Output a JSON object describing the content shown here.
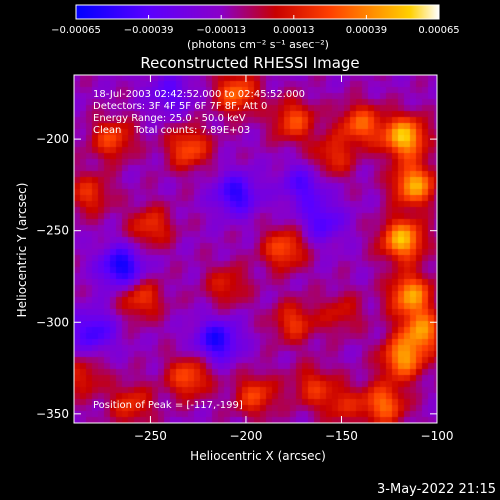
{
  "chart_data": {
    "type": "heatmap",
    "title": "Reconstructed RHESSI Image",
    "xlabel": "Heliocentric X (arcsec)",
    "ylabel": "Heliocentric Y (arcsec)",
    "xlim": [
      -290,
      -100
    ],
    "ylim": [
      -355,
      -165
    ],
    "x_ticks": [
      -250,
      -200,
      -150,
      -100
    ],
    "y_ticks": [
      -200,
      -250,
      -300,
      -350
    ],
    "x_tick_labels": [
      "−250",
      "−200",
      "−150",
      "−100"
    ],
    "y_tick_labels": [
      "−200",
      "−250",
      "−300",
      "−350"
    ],
    "colorbar": {
      "min": -0.00065,
      "max": 0.00065,
      "ticks": [
        -0.00065,
        -0.00039,
        -0.00013,
        0.00013,
        0.00039,
        0.00065
      ],
      "tick_labels": [
        "−0.00065",
        "−0.00039",
        "−0.00013",
        "0.00013",
        "0.00039",
        "0.00065"
      ],
      "unit_label": "(photons cm⁻² s⁻¹ asec⁻²)",
      "colors": [
        "#0000ff",
        "#5a00ff",
        "#8a00c8",
        "#c80000",
        "#ff4000",
        "#ff9000",
        "#ffd000",
        "#ffffff"
      ]
    },
    "annotations": [
      "18-Jul-2003 02:42:52.000 to 02:45:52.000",
      "Detectors: 3F 4F 5F 6F 7F 8F, Att 0",
      "Energy Range: 25.0 - 50.0 keV",
      "Clean    Total counts: 7.89E+03",
      "Position of Peak = [-117,-199]"
    ],
    "peak": {
      "x": -117,
      "y": -199
    },
    "hot_spots": [
      {
        "x": -117,
        "y": -199,
        "value": 0.00065
      },
      {
        "x": -112,
        "y": -225,
        "value": 0.00058
      },
      {
        "x": -118,
        "y": -255,
        "value": 0.00062
      },
      {
        "x": -114,
        "y": -285,
        "value": 0.00055
      },
      {
        "x": -118,
        "y": -320,
        "value": 0.00052
      },
      {
        "x": -128,
        "y": -345,
        "value": 0.00045
      },
      {
        "x": -108,
        "y": -305,
        "value": 0.0005
      },
      {
        "x": -140,
        "y": -192,
        "value": 0.00042
      },
      {
        "x": -155,
        "y": -210,
        "value": 0.0003
      },
      {
        "x": -175,
        "y": -190,
        "value": 0.00038
      },
      {
        "x": -205,
        "y": -175,
        "value": 0.00044
      },
      {
        "x": -230,
        "y": -205,
        "value": 0.0004
      },
      {
        "x": -270,
        "y": -200,
        "value": 0.00036
      },
      {
        "x": -282,
        "y": -230,
        "value": 0.0003
      },
      {
        "x": -250,
        "y": -248,
        "value": 0.00032
      },
      {
        "x": -180,
        "y": -260,
        "value": 0.0004
      },
      {
        "x": -210,
        "y": -280,
        "value": 0.00026
      },
      {
        "x": -255,
        "y": -287,
        "value": 0.00034
      },
      {
        "x": -175,
        "y": -300,
        "value": 0.00032
      },
      {
        "x": -150,
        "y": -295,
        "value": 0.00022
      },
      {
        "x": -230,
        "y": -330,
        "value": 0.0004
      },
      {
        "x": -195,
        "y": -340,
        "value": 0.00035
      },
      {
        "x": -165,
        "y": -335,
        "value": 0.00028
      },
      {
        "x": -260,
        "y": -345,
        "value": 0.0003
      },
      {
        "x": -285,
        "y": -330,
        "value": 0.00025
      },
      {
        "x": -150,
        "y": -345,
        "value": 0.00024
      }
    ],
    "cold_spots": [
      {
        "x": -265,
        "y": -270,
        "value": -0.0005
      },
      {
        "x": -215,
        "y": -310,
        "value": -0.00045
      },
      {
        "x": -205,
        "y": -230,
        "value": -0.0004
      },
      {
        "x": -280,
        "y": -305,
        "value": -0.00035
      },
      {
        "x": -160,
        "y": -245,
        "value": -0.0003
      },
      {
        "x": -240,
        "y": -175,
        "value": -0.00025
      },
      {
        "x": -170,
        "y": -225,
        "value": -0.0003
      }
    ]
  },
  "footer": {
    "timestamp": "3-May-2022 21:15"
  }
}
